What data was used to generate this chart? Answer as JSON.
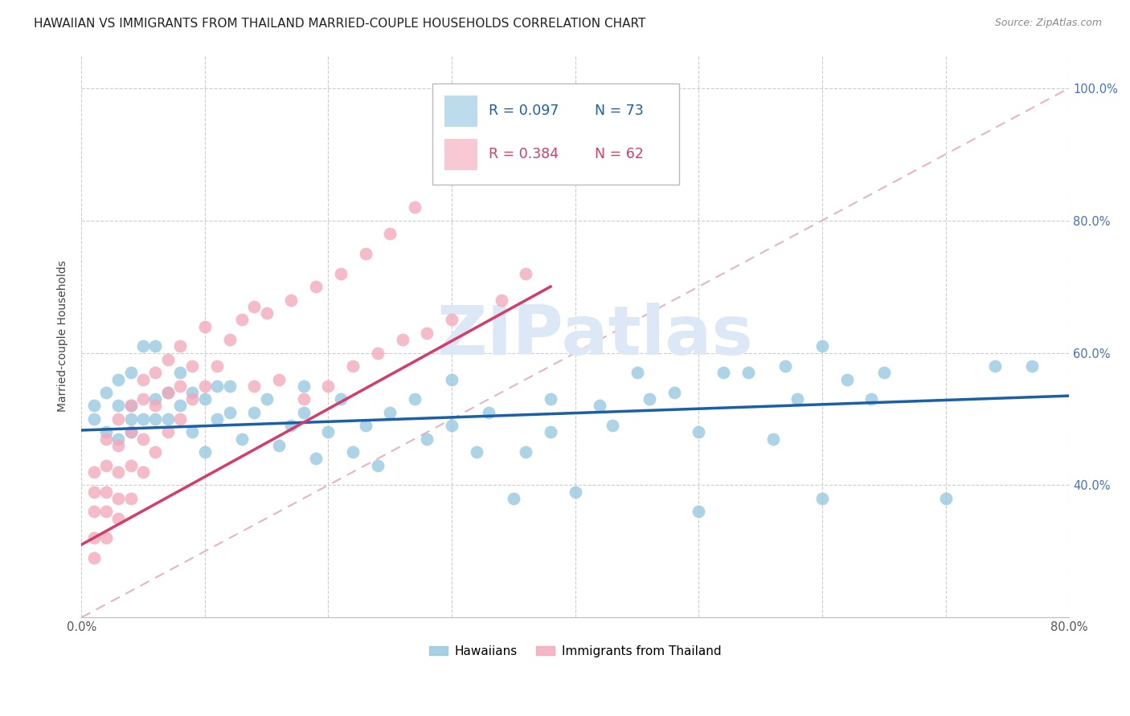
{
  "title": "HAWAIIAN VS IMMIGRANTS FROM THAILAND MARRIED-COUPLE HOUSEHOLDS CORRELATION CHART",
  "source": "Source: ZipAtlas.com",
  "ylabel": "Married-couple Households",
  "xlim": [
    0.0,
    0.8
  ],
  "ylim": [
    0.2,
    1.05
  ],
  "yticks": [
    0.4,
    0.6,
    0.8,
    1.0
  ],
  "ytick_labels": [
    "40.0%",
    "60.0%",
    "80.0%",
    "100.0%"
  ],
  "xticks": [
    0.0,
    0.1,
    0.2,
    0.3,
    0.4,
    0.5,
    0.6,
    0.7,
    0.8
  ],
  "xtick_labels": [
    "0.0%",
    "",
    "",
    "",
    "",
    "",
    "",
    "",
    "80.0%"
  ],
  "blue_color": "#92c5de",
  "pink_color": "#f4a4b8",
  "blue_line_color": "#1a5fa8",
  "pink_line_color": "#d63b6a",
  "ref_line_color": "#e8b4c0",
  "right_tick_color": "#4472c4",
  "legend_blue_R": "R = 0.097",
  "legend_blue_N": "N = 73",
  "legend_pink_R": "R = 0.384",
  "legend_pink_N": "N = 62",
  "hawaiians_label": "Hawaiians",
  "thailand_label": "Immigrants from Thailand",
  "watermark_text": "ZIPatlas",
  "watermark_color": "#dce8f5",
  "title_color": "#222222",
  "source_color": "#888888",
  "ylabel_color": "#444444",
  "blue_scatter_x": [
    0.01,
    0.01,
    0.02,
    0.02,
    0.03,
    0.03,
    0.03,
    0.04,
    0.04,
    0.04,
    0.04,
    0.05,
    0.05,
    0.06,
    0.06,
    0.06,
    0.07,
    0.07,
    0.08,
    0.08,
    0.09,
    0.09,
    0.1,
    0.1,
    0.11,
    0.11,
    0.12,
    0.12,
    0.13,
    0.14,
    0.15,
    0.16,
    0.17,
    0.18,
    0.18,
    0.19,
    0.2,
    0.21,
    0.22,
    0.23,
    0.24,
    0.25,
    0.27,
    0.28,
    0.3,
    0.3,
    0.32,
    0.33,
    0.35,
    0.36,
    0.38,
    0.38,
    0.4,
    0.42,
    0.43,
    0.45,
    0.46,
    0.48,
    0.5,
    0.5,
    0.52,
    0.54,
    0.56,
    0.57,
    0.58,
    0.6,
    0.6,
    0.62,
    0.64,
    0.65,
    0.7,
    0.74,
    0.77
  ],
  "blue_scatter_y": [
    0.5,
    0.52,
    0.48,
    0.54,
    0.47,
    0.52,
    0.56,
    0.48,
    0.5,
    0.52,
    0.57,
    0.5,
    0.61,
    0.5,
    0.53,
    0.61,
    0.5,
    0.54,
    0.52,
    0.57,
    0.48,
    0.54,
    0.45,
    0.53,
    0.5,
    0.55,
    0.51,
    0.55,
    0.47,
    0.51,
    0.53,
    0.46,
    0.49,
    0.51,
    0.55,
    0.44,
    0.48,
    0.53,
    0.45,
    0.49,
    0.43,
    0.51,
    0.53,
    0.47,
    0.49,
    0.56,
    0.45,
    0.51,
    0.38,
    0.45,
    0.48,
    0.53,
    0.39,
    0.52,
    0.49,
    0.57,
    0.53,
    0.54,
    0.48,
    0.36,
    0.57,
    0.57,
    0.47,
    0.58,
    0.53,
    0.38,
    0.61,
    0.56,
    0.53,
    0.57,
    0.38,
    0.58,
    0.58
  ],
  "pink_scatter_x": [
    0.01,
    0.01,
    0.01,
    0.01,
    0.01,
    0.02,
    0.02,
    0.02,
    0.02,
    0.02,
    0.03,
    0.03,
    0.03,
    0.03,
    0.03,
    0.04,
    0.04,
    0.04,
    0.04,
    0.05,
    0.05,
    0.05,
    0.05,
    0.06,
    0.06,
    0.06,
    0.07,
    0.07,
    0.07,
    0.08,
    0.08,
    0.08,
    0.09,
    0.09,
    0.1,
    0.1,
    0.11,
    0.12,
    0.13,
    0.14,
    0.14,
    0.15,
    0.16,
    0.17,
    0.18,
    0.19,
    0.2,
    0.21,
    0.22,
    0.23,
    0.24,
    0.25,
    0.26,
    0.27,
    0.28,
    0.29,
    0.3,
    0.32,
    0.34,
    0.35,
    0.36,
    0.38
  ],
  "pink_scatter_y": [
    0.29,
    0.32,
    0.36,
    0.39,
    0.42,
    0.32,
    0.36,
    0.39,
    0.43,
    0.47,
    0.35,
    0.38,
    0.42,
    0.46,
    0.5,
    0.38,
    0.43,
    0.48,
    0.52,
    0.42,
    0.47,
    0.53,
    0.56,
    0.45,
    0.52,
    0.57,
    0.48,
    0.54,
    0.59,
    0.5,
    0.55,
    0.61,
    0.53,
    0.58,
    0.55,
    0.64,
    0.58,
    0.62,
    0.65,
    0.67,
    0.55,
    0.66,
    0.56,
    0.68,
    0.53,
    0.7,
    0.55,
    0.72,
    0.58,
    0.75,
    0.6,
    0.78,
    0.62,
    0.82,
    0.63,
    0.87,
    0.65,
    0.9,
    0.68,
    0.93,
    0.72,
    0.97
  ],
  "blue_trend_x": [
    0.0,
    0.8
  ],
  "blue_trend_y": [
    0.483,
    0.535
  ],
  "pink_trend_x": [
    0.0,
    0.38
  ],
  "pink_trend_y": [
    0.31,
    0.7
  ],
  "ref_line_x": [
    0.0,
    0.8
  ],
  "ref_line_y": [
    0.2,
    1.0
  ]
}
